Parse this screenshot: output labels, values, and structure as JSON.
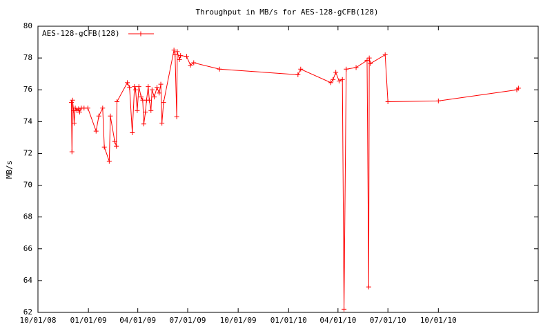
{
  "chart_data": {
    "type": "line",
    "title": "Throughput in MB/s for AES-128-gCFB(128)",
    "y_label": "MB/s",
    "legend": "top-left",
    "grid": false,
    "xlim": [
      "2008-10-01",
      "2011-04-01"
    ],
    "xticks": [
      {
        "value": "2008-10-01",
        "label": "10/01/08"
      },
      {
        "value": "2009-01-01",
        "label": "01/01/09"
      },
      {
        "value": "2009-04-01",
        "label": "04/01/09"
      },
      {
        "value": "2009-07-01",
        "label": "07/01/09"
      },
      {
        "value": "2009-10-01",
        "label": "10/01/09"
      },
      {
        "value": "2010-01-01",
        "label": "01/01/10"
      },
      {
        "value": "2010-04-01",
        "label": "04/01/10"
      },
      {
        "value": "2010-07-01",
        "label": "07/01/10"
      },
      {
        "value": "2010-10-01",
        "label": "10/01/10"
      }
    ],
    "ylim": [
      62,
      80
    ],
    "yticks": [
      62,
      64,
      66,
      68,
      70,
      72,
      74,
      76,
      78,
      80
    ],
    "x": [
      "2008-12-01",
      "2008-12-02",
      "2008-12-03",
      "2008-12-05",
      "2008-12-06",
      "2008-12-08",
      "2008-12-11",
      "2008-12-14",
      "2008-12-16",
      "2008-12-19",
      "2008-12-24",
      "2008-12-31",
      "2009-01-15",
      "2009-01-20",
      "2009-01-27",
      "2009-01-30",
      "2009-02-08",
      "2009-02-10",
      "2009-02-18",
      "2009-02-21",
      "2009-02-22",
      "2009-03-13",
      "2009-03-17",
      "2009-03-22",
      "2009-03-26",
      "2009-03-28",
      "2009-03-31",
      "2009-04-03",
      "2009-04-07",
      "2009-04-10",
      "2009-04-12",
      "2009-04-15",
      "2009-04-17",
      "2009-04-20",
      "2009-04-22",
      "2009-04-25",
      "2009-04-27",
      "2009-05-01",
      "2009-05-06",
      "2009-05-10",
      "2009-05-13",
      "2009-05-15",
      "2009-05-18",
      "2009-06-06",
      "2009-06-08",
      "2009-06-11",
      "2009-06-12",
      "2009-06-16",
      "2009-06-18",
      "2009-06-29",
      "2009-07-06",
      "2009-07-12",
      "2009-08-28",
      "2010-01-18",
      "2010-01-23",
      "2010-03-19",
      "2010-03-23",
      "2010-03-28",
      "2010-04-03",
      "2010-04-09",
      "2010-04-12",
      "2010-04-16",
      "2010-05-04",
      "2010-05-24",
      "2010-05-27",
      "2010-05-28",
      "2010-05-30",
      "2010-06-26",
      "2010-07-01",
      "2010-10-01",
      "2011-02-21",
      "2011-02-24"
    ],
    "series": [
      {
        "name": "AES-128-gCFB(128)",
        "color": "#ff0000",
        "values": [
          75.2,
          72.1,
          75.35,
          74.7,
          73.9,
          74.85,
          74.7,
          74.8,
          74.6,
          74.85,
          74.85,
          74.85,
          73.4,
          74.35,
          74.85,
          72.4,
          71.5,
          74.35,
          72.75,
          72.45,
          75.25,
          76.45,
          76.15,
          73.3,
          76.2,
          76.0,
          74.7,
          76.2,
          75.55,
          75.35,
          73.85,
          74.6,
          75.35,
          76.2,
          75.35,
          74.7,
          76.0,
          75.55,
          76.15,
          75.8,
          76.35,
          73.9,
          75.2,
          78.5,
          78.2,
          74.3,
          78.4,
          77.9,
          78.15,
          78.1,
          77.55,
          77.7,
          77.3,
          76.95,
          77.3,
          76.45,
          76.65,
          77.1,
          76.55,
          76.65,
          62.2,
          77.3,
          77.4,
          77.85,
          63.6,
          78.0,
          77.65,
          78.2,
          75.25,
          75.3,
          76.0,
          76.1
        ]
      }
    ]
  }
}
